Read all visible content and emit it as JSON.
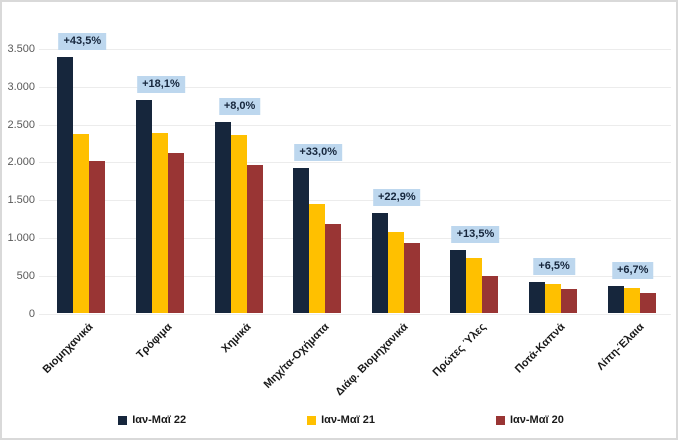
{
  "chart_data": {
    "type": "bar",
    "title": "",
    "xlabel": "",
    "ylabel": "",
    "categories": [
      "Βιομηχανικά",
      "Τρόφιμα",
      "Χημικά",
      "Μηχ/τα-Οχήματα",
      "Διάφ. Βιομηχανικά",
      "Πρώτες Ύλες",
      "Ποτά-Καπνά",
      "Λίπη-Έλαια"
    ],
    "series": [
      {
        "name": "Ιαν-Μαϊ 22",
        "color": "#16263c",
        "values": [
          3400,
          2820,
          2540,
          1930,
          1330,
          840,
          420,
          360
        ]
      },
      {
        "name": "Ιαν-Μαϊ 21",
        "color": "#ffc000",
        "values": [
          2370,
          2390,
          2360,
          1450,
          1080,
          740,
          395,
          340
        ]
      },
      {
        "name": "Ιαν-Μαϊ 20",
        "color": "#993534",
        "values": [
          2020,
          2130,
          1970,
          1180,
          930,
          490,
          330,
          270
        ]
      }
    ],
    "annotations": [
      "+43,5%",
      "+18,1%",
      "+8,0%",
      "+33,0%",
      "+22,9%",
      "+13,5%",
      "+6,5%",
      "+6,7%"
    ],
    "y_ticks": [
      0,
      500,
      1000,
      1500,
      2000,
      2500,
      3000,
      3500
    ],
    "y_tick_labels": [
      "0",
      "500",
      "1.000",
      "1.500",
      "2.000",
      "2.500",
      "3.000",
      "3.500"
    ],
    "ylim": [
      0,
      3500
    ],
    "grid": true,
    "legend_position": "bottom",
    "colors": {
      "annotation_bg": "#bdd7ee",
      "annotation_text": "#16263c",
      "gridline": "#ececec",
      "y_axis_text": "#595959",
      "x_axis_text": "#1a1a1a",
      "border": "#d9d9d9",
      "background": "#ffffff"
    }
  }
}
